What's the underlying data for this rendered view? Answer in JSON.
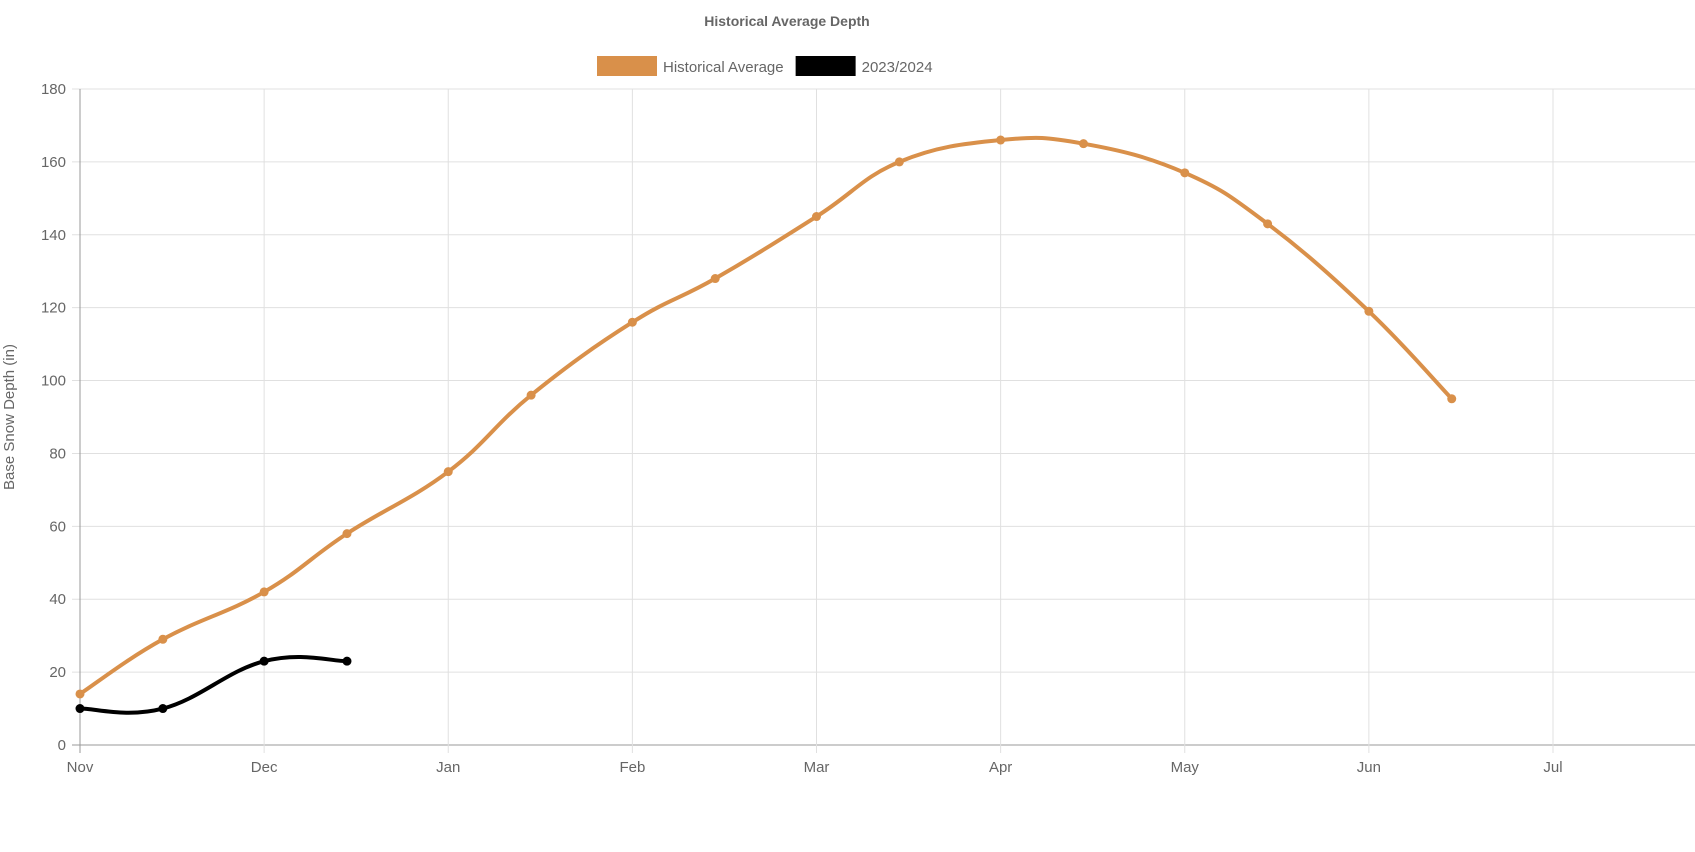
{
  "chart_data": {
    "type": "line",
    "title": "Historical Average Depth",
    "xlabel": "",
    "ylabel": "Base Snow Depth (in)",
    "ylim": [
      0,
      180
    ],
    "yticks": [
      0,
      20,
      40,
      60,
      80,
      100,
      120,
      140,
      160,
      180
    ],
    "xticks": [
      "Nov",
      "Dec",
      "Jan",
      "Feb",
      "Mar",
      "Apr",
      "May",
      "Jun",
      "Jul"
    ],
    "grid": true,
    "legend_position": "top",
    "series": [
      {
        "name": "Historical Average",
        "color": "#d9904a",
        "x": [
          0,
          0.45,
          1,
          1.45,
          2,
          2.45,
          3,
          3.45,
          4,
          4.45,
          5,
          5.45,
          6,
          6.45,
          7,
          7.45
        ],
        "x_labels": [
          "Nov 1",
          "Nov 15",
          "Dec 1",
          "Dec 15",
          "Jan 1",
          "Jan 15",
          "Feb 1",
          "Feb 15",
          "Mar 1",
          "Mar 15",
          "Apr 1",
          "Apr 15",
          "May 1",
          "May 15",
          "Jun 1",
          "Jun 15"
        ],
        "values": [
          14,
          29,
          42,
          58,
          75,
          96,
          116,
          128,
          145,
          160,
          166,
          165,
          157,
          143,
          119,
          95
        ]
      },
      {
        "name": "2023/2024",
        "color": "#000000",
        "x": [
          0,
          0.45,
          1,
          1.45
        ],
        "x_labels": [
          "Nov 1",
          "Nov 15",
          "Dec 1",
          "Dec 15"
        ],
        "values": [
          10,
          10,
          23,
          23
        ]
      }
    ]
  }
}
